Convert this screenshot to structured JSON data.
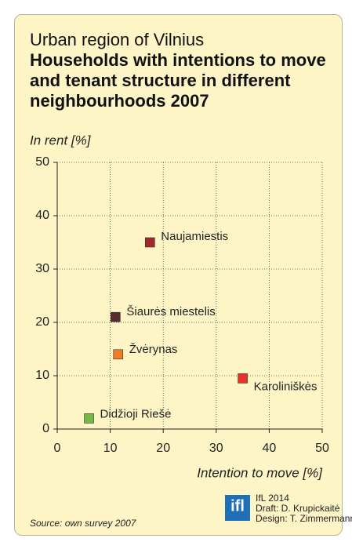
{
  "chart_data": {
    "type": "scatter",
    "title": "Urban region of Vilnius",
    "subtitle": "Households with intentions to move and tenant structure in different neighbourhoods 2007",
    "y_label": "In rent [%]",
    "x_label": "Intention to move [%]",
    "xlim": [
      0,
      50
    ],
    "xticks": [
      0,
      10,
      20,
      30,
      40,
      50
    ],
    "ylim": [
      0,
      50
    ],
    "yticks": [
      0,
      10,
      20,
      30,
      40,
      50
    ],
    "grid": true,
    "points": [
      {
        "name": "Naujamiestis",
        "color": "#a3272b",
        "x": 17.5,
        "y": 35
      },
      {
        "name": "Šiaurės miestelis",
        "color": "#5a2b31",
        "x": 11,
        "y": 21
      },
      {
        "name": "Žvėrynas",
        "color": "#f07c2a",
        "x": 11.5,
        "y": 14
      },
      {
        "name": "Karoliniškės",
        "color": "#e8332b",
        "x": 35,
        "y": 9.5
      },
      {
        "name": "Didžioji Riešė",
        "color": "#79b648",
        "x": 6,
        "y": 2
      }
    ],
    "source": "Source: own survey 2007",
    "logo": "ifl",
    "credits": [
      "IfL 2014",
      "Draft: D. Krupickaité",
      "Design: T. Zimmermann"
    ]
  }
}
